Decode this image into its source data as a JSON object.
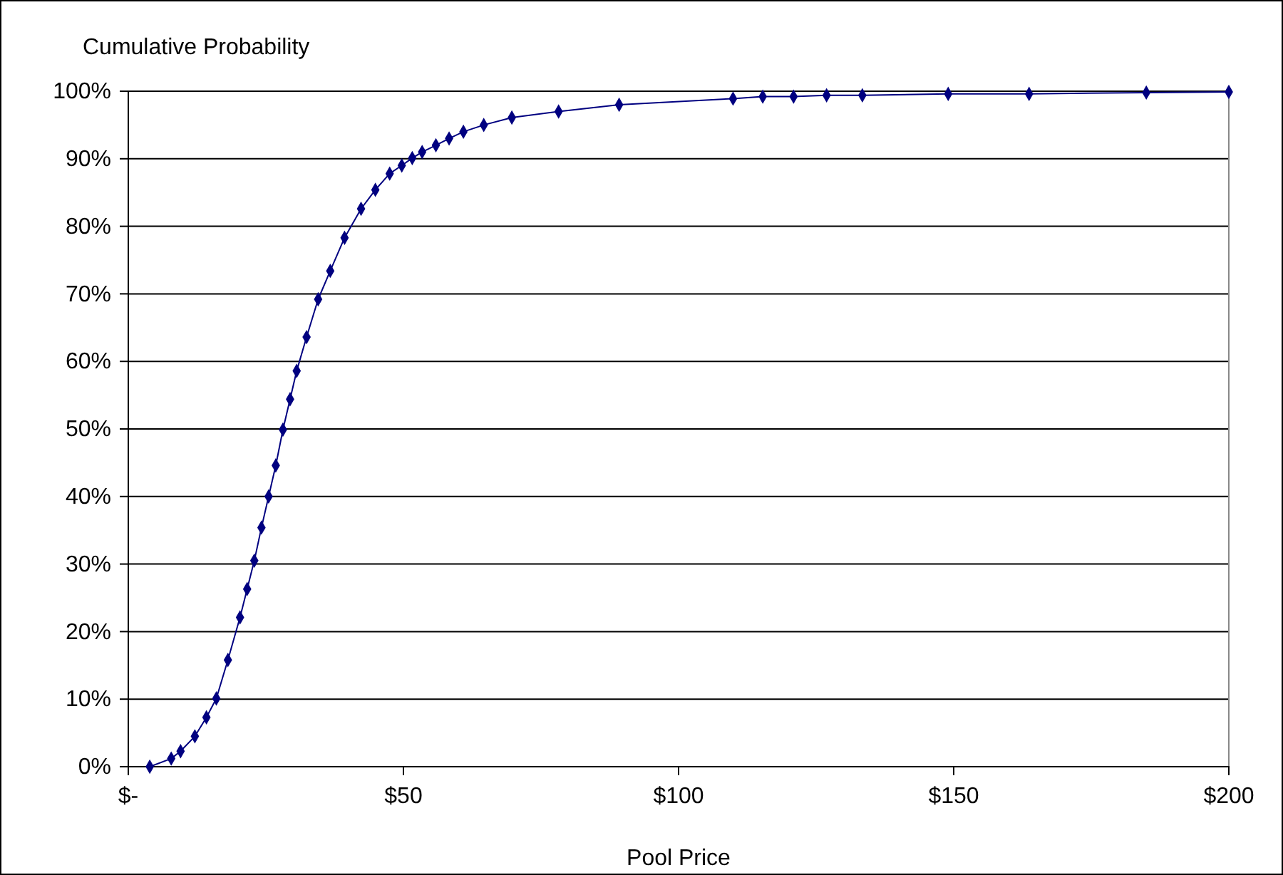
{
  "chart_data": {
    "type": "line",
    "ylabel": "Cumulative Probability",
    "xlabel": "Pool Price",
    "x": [
      3.9,
      7.8,
      9.5,
      12.1,
      14.2,
      16.0,
      18.1,
      20.3,
      21.6,
      22.9,
      24.2,
      25.5,
      26.8,
      28.1,
      29.4,
      30.6,
      32.4,
      34.5,
      36.7,
      39.3,
      42.3,
      44.9,
      47.5,
      49.7,
      51.6,
      53.4,
      55.9,
      58.3,
      60.9,
      64.6,
      69.7,
      78.2,
      89.2,
      109.9,
      115.3,
      120.9,
      126.9,
      133.4,
      149,
      163.7,
      185,
      200
    ],
    "series": [
      {
        "color": "#000080",
        "values": [
          0,
          1.2,
          2.3,
          4.5,
          7.3,
          10.1,
          15.8,
          22.1,
          26.3,
          30.5,
          35.4,
          40.0,
          44.6,
          49.9,
          54.4,
          58.6,
          63.6,
          69.2,
          73.4,
          78.3,
          82.6,
          85.4,
          87.8,
          89.0,
          90.1,
          91.0,
          92.0,
          93.0,
          94.0,
          95.0,
          96.1,
          97.0,
          98.0,
          98.9,
          99.2,
          99.2,
          99.4,
          99.4,
          99.6,
          99.6,
          99.8,
          99.9
        ]
      }
    ],
    "xlim": [
      0,
      200
    ],
    "ylim": [
      0,
      100
    ],
    "xticks": [
      {
        "value": 0,
        "label": "$-"
      },
      {
        "value": 50,
        "label": "$50"
      },
      {
        "value": 100,
        "label": "$100"
      },
      {
        "value": 150,
        "label": "$150"
      },
      {
        "value": 200,
        "label": "$200"
      }
    ],
    "yticks": [
      {
        "value": 0,
        "label": "0%"
      },
      {
        "value": 10,
        "label": "10%"
      },
      {
        "value": 20,
        "label": "20%"
      },
      {
        "value": 30,
        "label": "30%"
      },
      {
        "value": 40,
        "label": "40%"
      },
      {
        "value": 50,
        "label": "50%"
      },
      {
        "value": 60,
        "label": "60%"
      },
      {
        "value": 70,
        "label": "70%"
      },
      {
        "value": 80,
        "label": "80%"
      },
      {
        "value": 90,
        "label": "90%"
      },
      {
        "value": 100,
        "label": "100%"
      }
    ],
    "grid": "y",
    "marker": "diamond",
    "line_style": "solid"
  }
}
